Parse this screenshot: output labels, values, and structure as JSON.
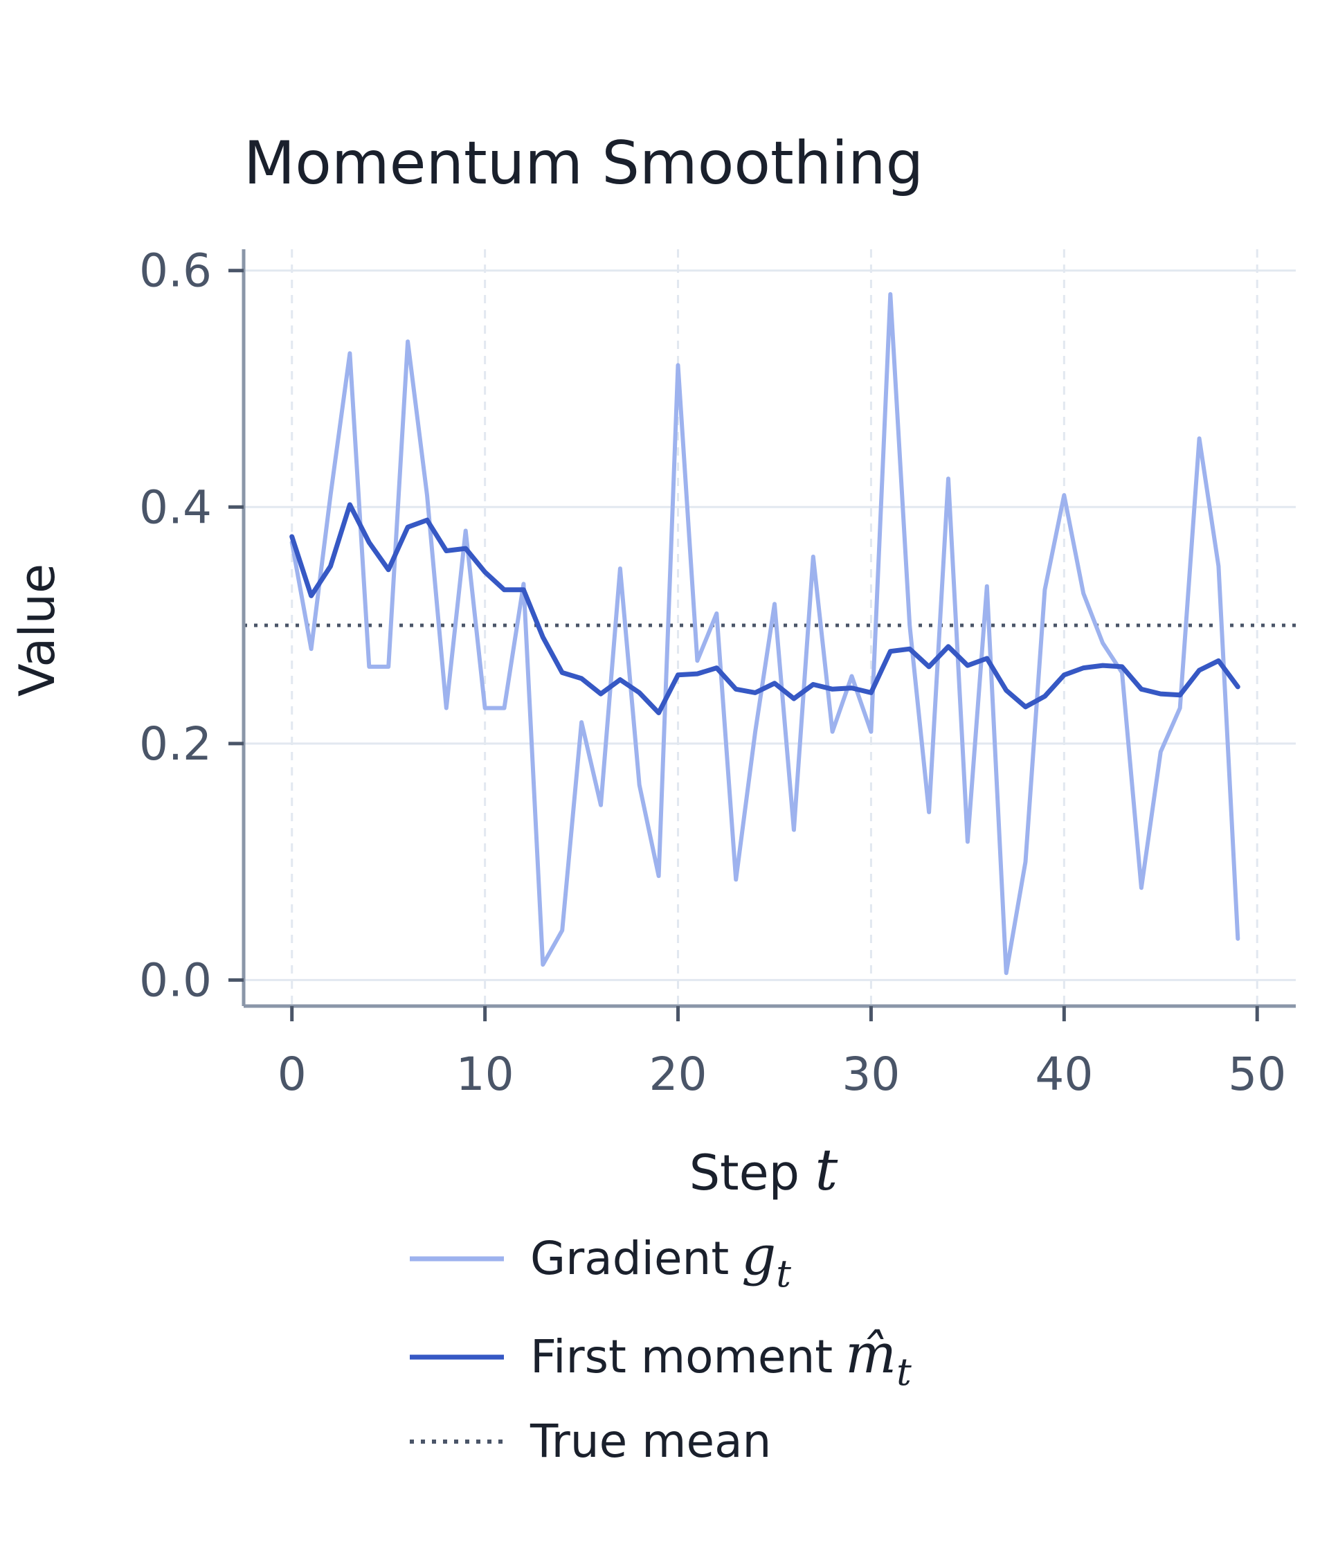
{
  "chart_data": {
    "type": "line",
    "title": "Momentum Smoothing",
    "xlabel": {
      "text": "Step ",
      "math": "t"
    },
    "ylabel": "Value",
    "xlim": [
      -2.5,
      52
    ],
    "ylim": [
      -0.022,
      0.618
    ],
    "xticks": [
      0,
      10,
      20,
      30,
      40,
      50
    ],
    "xtick_labels": [
      "0",
      "10",
      "20",
      "30",
      "40",
      "50"
    ],
    "yticks": [
      0.0,
      0.2,
      0.4,
      0.6
    ],
    "ytick_labels": [
      "0.0",
      "0.2",
      "0.4",
      "0.6"
    ],
    "grid": true,
    "legend_position": "below",
    "colors": {
      "gradient": "#9db2ee",
      "moment": "#3658c4",
      "true_mean": "#4a5568",
      "grid": "#e2e8f0",
      "axis": "#8a96a8"
    },
    "series": [
      {
        "name": "Gradient",
        "legend_math": "g",
        "legend_sub": "t",
        "style": "line-light",
        "x": [
          0,
          1,
          2,
          3,
          4,
          5,
          6,
          7,
          8,
          9,
          10,
          11,
          12,
          13,
          14,
          15,
          16,
          17,
          18,
          19,
          20,
          21,
          22,
          23,
          24,
          25,
          26,
          27,
          28,
          29,
          30,
          31,
          32,
          33,
          34,
          35,
          36,
          37,
          38,
          39,
          40,
          41,
          42,
          43,
          44,
          45,
          46,
          47,
          48,
          49
        ],
        "values": [
          0.37,
          0.28,
          0.41,
          0.53,
          0.265,
          0.265,
          0.54,
          0.41,
          0.23,
          0.38,
          0.23,
          0.23,
          0.335,
          0.013,
          0.042,
          0.218,
          0.148,
          0.348,
          0.165,
          0.088,
          0.52,
          0.27,
          0.31,
          0.085,
          0.21,
          0.318,
          0.127,
          0.358,
          0.21,
          0.257,
          0.21,
          0.58,
          0.3,
          0.142,
          0.424,
          0.117,
          0.333,
          0.006,
          0.1,
          0.33,
          0.41,
          0.327,
          0.285,
          0.26,
          0.078,
          0.193,
          0.23,
          0.458,
          0.35,
          0.035
        ]
      },
      {
        "name": "First moment",
        "legend_math": "m̂",
        "legend_sub": "t",
        "style": "line-dark",
        "x": [
          0,
          1,
          2,
          3,
          4,
          5,
          6,
          7,
          8,
          9,
          10,
          11,
          12,
          13,
          14,
          15,
          16,
          17,
          18,
          19,
          20,
          21,
          22,
          23,
          24,
          25,
          26,
          27,
          28,
          29,
          30,
          31,
          32,
          33,
          34,
          35,
          36,
          37,
          38,
          39,
          40,
          41,
          42,
          43,
          44,
          45,
          46,
          47,
          48,
          49
        ],
        "values": [
          0.375,
          0.325,
          0.35,
          0.402,
          0.37,
          0.347,
          0.383,
          0.389,
          0.363,
          0.365,
          0.345,
          0.33,
          0.33,
          0.29,
          0.26,
          0.255,
          0.242,
          0.254,
          0.243,
          0.226,
          0.258,
          0.259,
          0.264,
          0.246,
          0.243,
          0.251,
          0.238,
          0.25,
          0.246,
          0.247,
          0.243,
          0.278,
          0.28,
          0.265,
          0.282,
          0.266,
          0.272,
          0.245,
          0.231,
          0.24,
          0.258,
          0.264,
          0.266,
          0.265,
          0.246,
          0.242,
          0.241,
          0.262,
          0.27,
          0.248
        ]
      },
      {
        "name": "True mean",
        "style": "dotted-hline",
        "values": [
          0.3
        ]
      }
    ]
  }
}
